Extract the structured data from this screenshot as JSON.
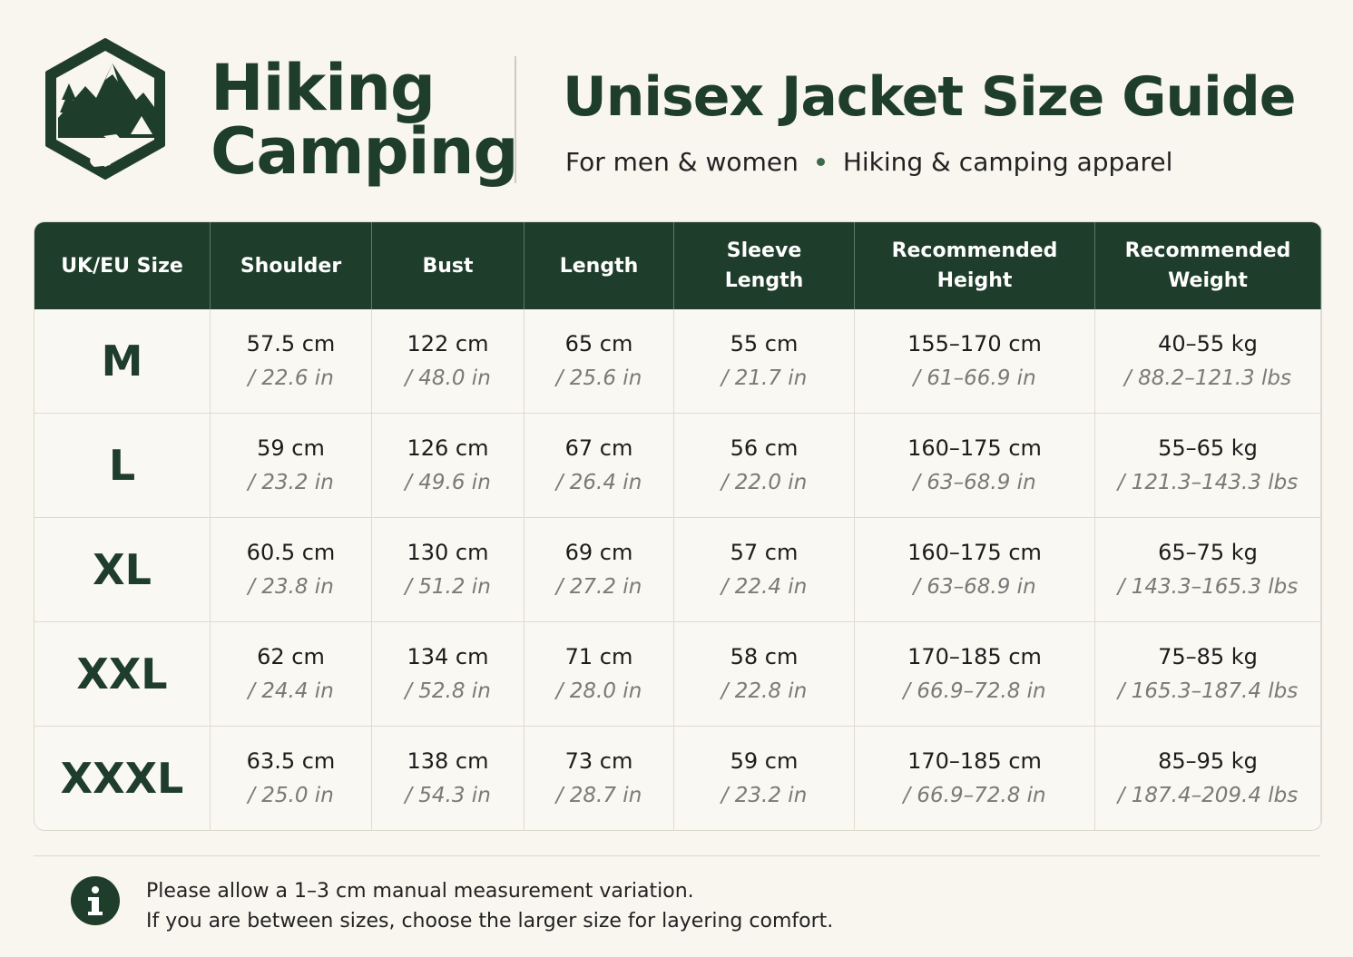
{
  "brand": {
    "line1": "Hiking",
    "line2": "Camping"
  },
  "header": {
    "title": "Unisex Jacket Size Guide",
    "subtitle_left": "For men & women",
    "subtitle_right": "Hiking & camping apparel"
  },
  "table": {
    "headers": [
      "UK/EU Size",
      "Shoulder",
      "Bust",
      "Length",
      "Sleeve Length",
      "Recommended Height",
      "Recommended Weight"
    ],
    "rows": [
      {
        "size": "M",
        "cells": [
          {
            "metric": "57.5 cm",
            "imperial": "/ 22.6 in"
          },
          {
            "metric": "122 cm",
            "imperial": "/ 48.0 in"
          },
          {
            "metric": "65 cm",
            "imperial": "/ 25.6 in"
          },
          {
            "metric": "55 cm",
            "imperial": "/ 21.7 in"
          },
          {
            "metric": "155–170 cm",
            "imperial": "/ 61–66.9 in"
          },
          {
            "metric": "40–55 kg",
            "imperial": "/ 88.2–121.3 lbs"
          }
        ]
      },
      {
        "size": "L",
        "cells": [
          {
            "metric": "59 cm",
            "imperial": "/ 23.2 in"
          },
          {
            "metric": "126 cm",
            "imperial": "/ 49.6 in"
          },
          {
            "metric": "67 cm",
            "imperial": "/ 26.4 in"
          },
          {
            "metric": "56 cm",
            "imperial": "/ 22.0 in"
          },
          {
            "metric": "160–175 cm",
            "imperial": "/ 63–68.9 in"
          },
          {
            "metric": "55–65 kg",
            "imperial": "/ 121.3–143.3 lbs"
          }
        ]
      },
      {
        "size": "XL",
        "cells": [
          {
            "metric": "60.5 cm",
            "imperial": "/ 23.8 in"
          },
          {
            "metric": "130 cm",
            "imperial": "/ 51.2 in"
          },
          {
            "metric": "69 cm",
            "imperial": "/ 27.2 in"
          },
          {
            "metric": "57 cm",
            "imperial": "/ 22.4 in"
          },
          {
            "metric": "160–175 cm",
            "imperial": "/ 63–68.9 in"
          },
          {
            "metric": "65–75 kg",
            "imperial": "/ 143.3–165.3 lbs"
          }
        ]
      },
      {
        "size": "XXL",
        "cells": [
          {
            "metric": "62 cm",
            "imperial": "/ 24.4 in"
          },
          {
            "metric": "134 cm",
            "imperial": "/ 52.8 in"
          },
          {
            "metric": "71 cm",
            "imperial": "/ 28.0 in"
          },
          {
            "metric": "58 cm",
            "imperial": "/ 22.8 in"
          },
          {
            "metric": "170–185 cm",
            "imperial": "/ 66.9–72.8 in"
          },
          {
            "metric": "75–85 kg",
            "imperial": "/ 165.3–187.4 lbs"
          }
        ]
      },
      {
        "size": "XXXL",
        "cells": [
          {
            "metric": "63.5 cm",
            "imperial": "/ 25.0 in"
          },
          {
            "metric": "138 cm",
            "imperial": "/ 54.3 in"
          },
          {
            "metric": "73 cm",
            "imperial": "/ 28.7 in"
          },
          {
            "metric": "59 cm",
            "imperial": "/ 23.2 in"
          },
          {
            "metric": "170–185 cm",
            "imperial": "/ 66.9–72.8 in"
          },
          {
            "metric": "85–95 kg",
            "imperial": "/ 187.4–209.4 lbs"
          }
        ]
      }
    ]
  },
  "note": {
    "lines": [
      "Please allow a 1–3 cm manual measurement variation.",
      "If you are between sizes, choose the larger size for layering comfort."
    ]
  }
}
